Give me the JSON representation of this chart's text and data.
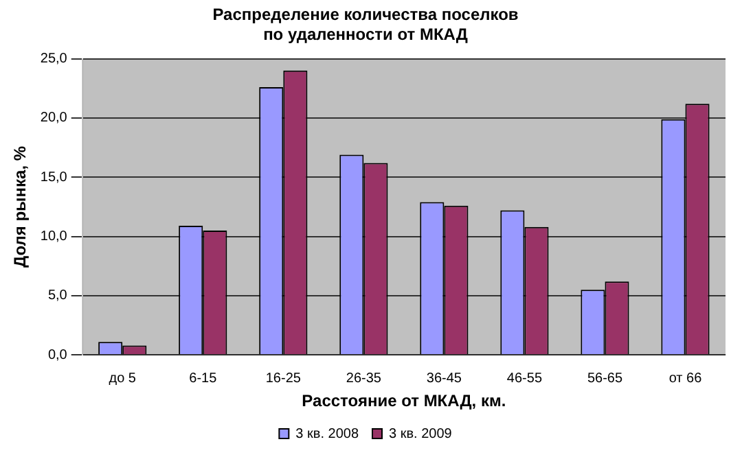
{
  "chart_data": {
    "type": "bar",
    "title": "Распределение количества поселков\nпо удаленности от МКАД",
    "xlabel": "Расстояние от МКАД, км.",
    "ylabel": "Доля рынка, %",
    "categories": [
      "до 5",
      "6-15",
      "16-25",
      "26-35",
      "36-45",
      "46-55",
      "56-65",
      "от 66"
    ],
    "series": [
      {
        "name": "3 кв. 2008",
        "color": "#9999ff",
        "values": [
          1.1,
          10.9,
          22.6,
          16.9,
          12.9,
          12.2,
          5.5,
          19.9
        ]
      },
      {
        "name": "3 кв. 2009",
        "color": "#993366",
        "values": [
          0.8,
          10.5,
          24.0,
          16.2,
          12.6,
          10.8,
          6.2,
          21.2
        ]
      }
    ],
    "ylim": [
      0,
      25
    ],
    "yticks": [
      {
        "value": 0,
        "label": "0,0"
      },
      {
        "value": 5,
        "label": "5,0"
      },
      {
        "value": 10,
        "label": "10,0"
      },
      {
        "value": 15,
        "label": "15,0"
      },
      {
        "value": 20,
        "label": "20,0"
      },
      {
        "value": 25,
        "label": "25,0"
      }
    ],
    "grid": "y",
    "legend": "bottom"
  }
}
